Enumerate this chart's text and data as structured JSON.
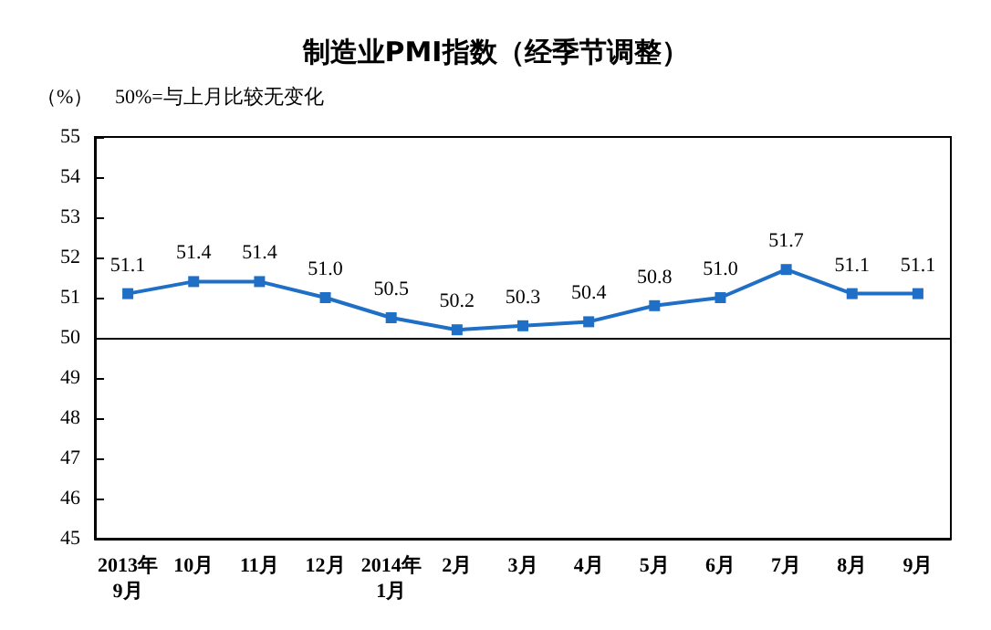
{
  "chart_data": {
    "type": "line",
    "title": "制造业PMI指数（经季节调整）",
    "ylabel": "（%）",
    "annotations": [
      "50%=与上月比较无变化"
    ],
    "categories": [
      "2013年\n9月",
      "10月",
      "11月",
      "12月",
      "2014年\n1月",
      "2月",
      "3月",
      "4月",
      "5月",
      "6月",
      "7月",
      "8月",
      "9月"
    ],
    "series": [
      {
        "color": "#1f6fc6",
        "values": [
          51.1,
          51.4,
          51.4,
          51.0,
          50.5,
          50.2,
          50.3,
          50.4,
          50.8,
          51.0,
          51.7,
          51.1,
          51.1
        ],
        "value_labels": [
          "51.1",
          "51.4",
          "51.4",
          "51.0",
          "50.5",
          "50.2",
          "50.3",
          "50.4",
          "50.8",
          "51.0",
          "51.7",
          "51.1",
          "51.1"
        ]
      }
    ],
    "ylim": [
      45,
      55
    ],
    "yticks": [
      45,
      46,
      47,
      48,
      49,
      50,
      51,
      52,
      53,
      54,
      55
    ],
    "ref_lines": [
      {
        "axis": "y",
        "value": 50,
        "color": "#000000"
      }
    ],
    "marker": "square",
    "line_style": "solid",
    "grid": false
  }
}
